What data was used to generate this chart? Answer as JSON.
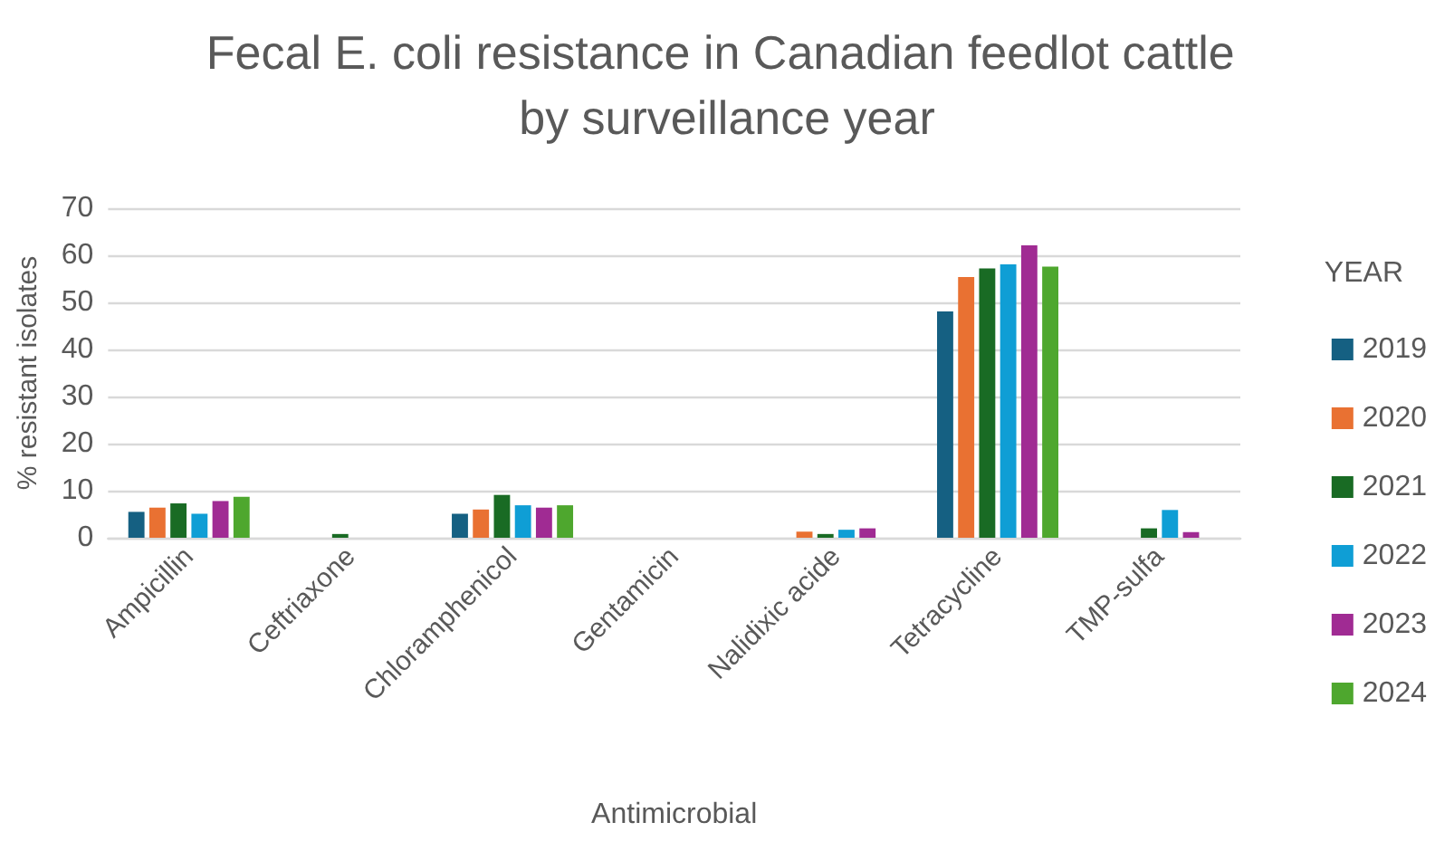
{
  "chart_data": {
    "type": "bar",
    "title": "Fecal E. coli resistance in Canadian feedlot cattle by surveillance year",
    "xlabel": "Antimicrobial",
    "ylabel": "% resistant isolates",
    "legend_title": "YEAR",
    "categories": [
      "Ampicillin",
      "Ceftriaxone",
      "Chloramphenicol",
      "Gentamicin",
      "Nalidixic acide",
      "Tetracycline",
      "TMP-sulfa"
    ],
    "series": [
      {
        "name": "2019",
        "color": "#156082",
        "values": [
          5.5,
          0,
          5.1,
          0,
          0,
          48.1,
          0
        ]
      },
      {
        "name": "2020",
        "color": "#e97132",
        "values": [
          6.4,
          0,
          6.0,
          0,
          1.3,
          55.4,
          0
        ]
      },
      {
        "name": "2021",
        "color": "#196b24",
        "values": [
          7.3,
          0.8,
          9.1,
          0,
          0.8,
          57.2,
          2.0
        ]
      },
      {
        "name": "2022",
        "color": "#0f9ed5",
        "values": [
          5.1,
          0,
          6.9,
          0,
          1.7,
          58.1,
          5.9
        ]
      },
      {
        "name": "2023",
        "color": "#a02b93",
        "values": [
          7.8,
          0,
          6.4,
          0,
          2.0,
          62.1,
          1.2
        ]
      },
      {
        "name": "2024",
        "color": "#4ea72e",
        "values": [
          8.7,
          0,
          6.9,
          0,
          0,
          57.6,
          0
        ]
      }
    ],
    "ylim": [
      0,
      70
    ],
    "yticks": [
      0,
      10,
      20,
      30,
      40,
      50,
      60,
      70
    ],
    "grid": "y",
    "legend": "right"
  }
}
